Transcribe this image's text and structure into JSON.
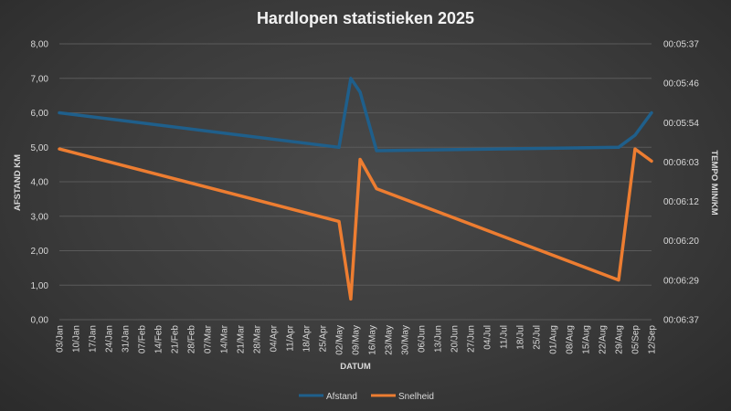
{
  "chart_data": {
    "type": "line",
    "title": "Hardlopen statistieken 2025",
    "xlabel": "DATUM",
    "ylabel_left": "AFSTAND KM",
    "ylabel_right": "TEMPO MIN/KM",
    "x_dates": [
      "2025-01-03",
      "2025-05-02",
      "2025-05-07",
      "2025-05-11",
      "2025-05-18",
      "2025-08-29",
      "2025-09-05",
      "2025-09-12"
    ],
    "x_ticks": [
      "03/Jan",
      "10/Jan",
      "17/Jan",
      "24/Jan",
      "31/Jan",
      "07/Feb",
      "14/Feb",
      "21/Feb",
      "28/Feb",
      "07/Mar",
      "14/Mar",
      "21/Mar",
      "28/Mar",
      "04/Apr",
      "11/Apr",
      "18/Apr",
      "25/Apr",
      "02/May",
      "09/May",
      "16/May",
      "23/May",
      "30/May",
      "06/Jun",
      "13/Jun",
      "20/Jun",
      "27/Jun",
      "04/Jul",
      "11/Jul",
      "18/Jul",
      "25/Jul",
      "01/Aug",
      "08/Aug",
      "15/Aug",
      "22/Aug",
      "29/Aug",
      "05/Sep",
      "12/Sep"
    ],
    "y_left_ticks": [
      "0,00",
      "1,00",
      "2,00",
      "3,00",
      "4,00",
      "5,00",
      "6,00",
      "7,00",
      "8,00"
    ],
    "y_left_range": [
      0,
      8
    ],
    "y_right_ticks": [
      "00:06:37",
      "00:06:29",
      "00:06:20",
      "00:06:12",
      "00:06:03",
      "00:05:54",
      "00:05:46",
      "00:05:37"
    ],
    "series": [
      {
        "name": "Afstand",
        "axis": "left",
        "color": "#1f5f8b",
        "values": [
          6.0,
          5.0,
          7.0,
          6.6,
          4.9,
          5.0,
          5.35,
          6.0
        ]
      },
      {
        "name": "Snelheid",
        "axis": "left",
        "color": "#ed7d31",
        "values": [
          4.95,
          2.85,
          0.6,
          4.65,
          3.8,
          1.15,
          4.95,
          4.6
        ]
      }
    ],
    "legend_position": "bottom",
    "grid": true
  }
}
